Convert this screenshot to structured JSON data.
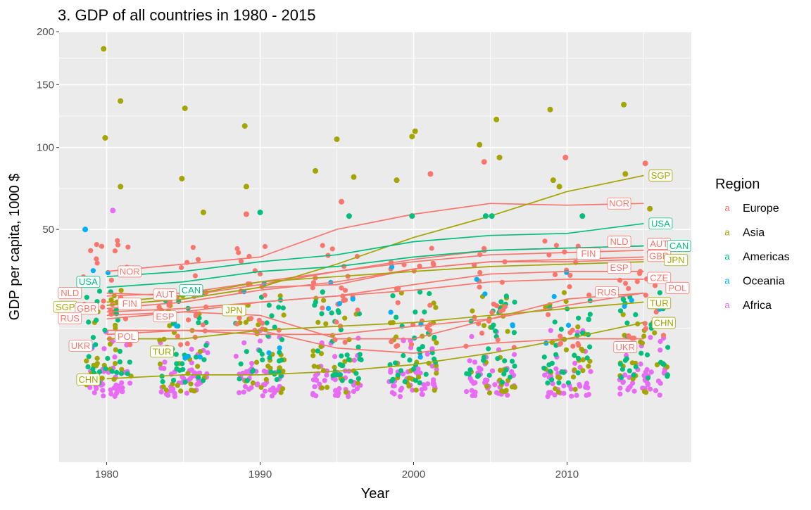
{
  "chart_data": {
    "type": "scatter",
    "title": "3. GDP of all countries in 1980 - 2015",
    "xlabel": "Year",
    "ylabel": "GDP per capita, 1000 $",
    "y_scale": "sqrt",
    "xlim": [
      1976.9,
      2018.1
    ],
    "ylim": [
      0,
      200
    ],
    "x_ticks": [
      1980,
      1990,
      2000,
      2010
    ],
    "y_ticks": [
      50,
      100,
      150,
      200
    ],
    "grid": true,
    "legend": {
      "title": "Region",
      "position": "right",
      "entries": [
        {
          "name": "Europe",
          "color": "#F8766D"
        },
        {
          "name": "Asia",
          "color": "#A3A500"
        },
        {
          "name": "Americas",
          "color": "#00BF7D"
        },
        {
          "name": "Oceania",
          "color": "#00B0F6"
        },
        {
          "name": "Africa",
          "color": "#E76BF3"
        }
      ]
    },
    "years": [
      1980,
      1985,
      1990,
      1995,
      2000,
      2005,
      2010,
      2015
    ],
    "series": [
      {
        "name": "NOR",
        "region": "Europe",
        "values": [
          31,
          34,
          37,
          50,
          58,
          64,
          63,
          64
        ]
      },
      {
        "name": "NLD",
        "region": "Europe",
        "values": [
          23,
          22,
          26,
          31,
          36,
          40,
          41,
          42
        ]
      },
      {
        "name": "GBR",
        "region": "Europe",
        "values": [
          18,
          20,
          24,
          27,
          32,
          35,
          35,
          36
        ]
      },
      {
        "name": "RUS",
        "region": "Europe",
        "values": [
          15,
          17,
          16,
          10,
          10,
          15,
          21,
          23
        ]
      },
      {
        "name": "AUT",
        "region": "Europe",
        "values": [
          22,
          23,
          27,
          31,
          35,
          38,
          39,
          40
        ]
      },
      {
        "name": "FIN",
        "region": "Europe",
        "values": [
          19,
          21,
          25,
          26,
          32,
          35,
          36,
          37
        ]
      },
      {
        "name": "ESP",
        "region": "Europe",
        "values": [
          16,
          17,
          20,
          22,
          26,
          30,
          31,
          31
        ]
      },
      {
        "name": "POL",
        "region": "Europe",
        "values": [
          12,
          12,
          11,
          11,
          13,
          15,
          19,
          23
        ]
      },
      {
        "name": "UKR",
        "region": "Europe",
        "values": [
          11,
          12,
          12,
          8,
          7,
          9,
          10,
          10
        ]
      },
      {
        "name": "CZE",
        "region": "Europe",
        "values": [
          17,
          18,
          20,
          22,
          24,
          27,
          28,
          28
        ]
      },
      {
        "name": "SGP",
        "region": "Asia",
        "values": [
          19,
          21,
          25,
          34,
          46,
          57,
          71,
          81
        ]
      },
      {
        "name": "JPN",
        "region": "Asia",
        "values": [
          20,
          22,
          27,
          29,
          31,
          33,
          34,
          35
        ]
      },
      {
        "name": "TUR",
        "region": "Asia",
        "values": [
          10,
          10,
          12,
          13,
          14,
          16,
          18,
          20
        ]
      },
      {
        "name": "CHN",
        "region": "Asia",
        "values": [
          3,
          3.5,
          3.5,
          4,
          5,
          7,
          10,
          14
        ]
      },
      {
        "name": "USA",
        "region": "Americas",
        "values": [
          29,
          31,
          35,
          38,
          44,
          47,
          48,
          53
        ]
      },
      {
        "name": "CAN",
        "region": "Americas",
        "values": [
          25,
          27,
          31,
          33,
          37,
          40,
          41,
          42
        ]
      }
    ],
    "outliers_europe": [
      [
        1995.3,
        65
      ],
      [
        2001.1,
        82
      ],
      [
        2004.6,
        90
      ],
      [
        2009.9,
        93
      ],
      [
        2015.1,
        89
      ],
      [
        1989.1,
        58
      ]
    ],
    "outliers_asia": [
      [
        1979.8,
        183
      ],
      [
        1980.9,
        136
      ],
      [
        1985.1,
        130
      ],
      [
        1989.0,
        116
      ],
      [
        1995.0,
        106
      ],
      [
        2000.1,
        112
      ],
      [
        2005.4,
        121
      ],
      [
        2008.9,
        129
      ],
      [
        2013.7,
        133
      ],
      [
        1979.9,
        107
      ],
      [
        1999.9,
        108
      ],
      [
        2004.3,
        102
      ],
      [
        2005.6,
        93
      ],
      [
        1993.6,
        84
      ],
      [
        1996.1,
        80
      ],
      [
        1998.9,
        78
      ],
      [
        1984.9,
        79
      ],
      [
        1980.9,
        74
      ],
      [
        1989.1,
        74
      ],
      [
        2009.1,
        78
      ],
      [
        2009.5,
        74
      ],
      [
        2013.8,
        82
      ],
      [
        2015.4,
        61
      ],
      [
        1986.3,
        59
      ]
    ],
    "outliers_americas": [
      [
        1990.0,
        59
      ],
      [
        1995.8,
        57
      ],
      [
        1999.9,
        57
      ],
      [
        2004.7,
        57
      ],
      [
        2005.1,
        57
      ],
      [
        2011.0,
        57
      ]
    ],
    "outliers_oceania": [
      [
        1978.6,
        50
      ]
    ],
    "outliers_africa": [
      [
        1980.4,
        60
      ]
    ],
    "labels": [
      {
        "text": "NOR",
        "region": "Europe",
        "year": 1981.5,
        "value": 31
      },
      {
        "text": "USA",
        "region": "Americas",
        "year": 1978.8,
        "value": 27
      },
      {
        "text": "NLD",
        "region": "Europe",
        "year": 1977.6,
        "value": 23
      },
      {
        "text": "AUT",
        "region": "Europe",
        "year": 1983.8,
        "value": 22.5
      },
      {
        "text": "CAN",
        "region": "Americas",
        "year": 1985.5,
        "value": 24
      },
      {
        "text": "SGP",
        "region": "Asia",
        "year": 1977.3,
        "value": 18.5
      },
      {
        "text": "GBR",
        "region": "Europe",
        "year": 1978.7,
        "value": 18
      },
      {
        "text": "FIN",
        "region": "Europe",
        "year": 1981.5,
        "value": 19.5
      },
      {
        "text": "JPN",
        "region": "Asia",
        "year": 1988.3,
        "value": 17.5
      },
      {
        "text": "RUS",
        "region": "Europe",
        "year": 1977.6,
        "value": 15.2
      },
      {
        "text": "ESP",
        "region": "Europe",
        "year": 1983.8,
        "value": 15.7
      },
      {
        "text": "POL",
        "region": "Europe",
        "year": 1981.3,
        "value": 10.5
      },
      {
        "text": "UKR",
        "region": "Europe",
        "year": 1978.3,
        "value": 8.5
      },
      {
        "text": "TUR",
        "region": "Asia",
        "year": 1983.6,
        "value": 7.3
      },
      {
        "text": "CHN",
        "region": "Asia",
        "year": 1978.8,
        "value": 2.9
      },
      {
        "text": "SGP",
        "region": "Asia",
        "year": 2016.1,
        "value": 81
      },
      {
        "text": "NOR",
        "region": "Europe",
        "year": 2013.4,
        "value": 64
      },
      {
        "text": "USA",
        "region": "Americas",
        "year": 2016.1,
        "value": 53
      },
      {
        "text": "NLD",
        "region": "Europe",
        "year": 2013.4,
        "value": 44
      },
      {
        "text": "AUT",
        "region": "Europe",
        "year": 2016.0,
        "value": 43
      },
      {
        "text": "CAN",
        "region": "Americas",
        "year": 2017.3,
        "value": 42
      },
      {
        "text": "FIN",
        "region": "Europe",
        "year": 2011.4,
        "value": 38.5
      },
      {
        "text": "GBR",
        "region": "Europe",
        "year": 2016.0,
        "value": 37.5
      },
      {
        "text": "JPN",
        "region": "Asia",
        "year": 2017.1,
        "value": 35.7
      },
      {
        "text": "ESP",
        "region": "Europe",
        "year": 2013.4,
        "value": 32.5
      },
      {
        "text": "CZE",
        "region": "Europe",
        "year": 2016.0,
        "value": 28.5
      },
      {
        "text": "POL",
        "region": "Europe",
        "year": 2017.2,
        "value": 24.8
      },
      {
        "text": "RUS",
        "region": "Europe",
        "year": 2012.6,
        "value": 23.3
      },
      {
        "text": "TUR",
        "region": "Asia",
        "year": 2016.0,
        "value": 19.7
      },
      {
        "text": "CHN",
        "region": "Asia",
        "year": 2016.3,
        "value": 13.9
      },
      {
        "text": "UKR",
        "region": "Europe",
        "year": 2013.8,
        "value": 8.2
      }
    ]
  }
}
